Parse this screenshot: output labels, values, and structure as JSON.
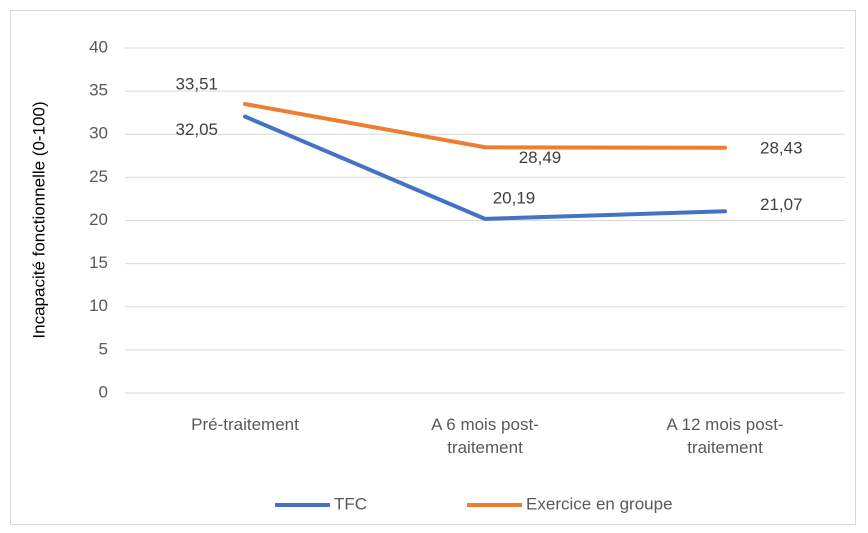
{
  "chart_data": {
    "type": "line",
    "y_label": "Incapacité fonctionnelle (0-100)",
    "categories": [
      "Pré-traitement",
      "A 6 mois post-traitement",
      "A 12 mois post-traitement"
    ],
    "series": [
      {
        "name": "TFC",
        "color": "#4472c4",
        "values": [
          32.05,
          20.19,
          21.07
        ],
        "value_labels": [
          "32,05",
          "20,19",
          "21,07"
        ]
      },
      {
        "name": "Exercice en groupe",
        "color": "#ed7d31",
        "values": [
          33.51,
          28.49,
          28.43
        ],
        "value_labels": [
          "33,51",
          "28,49",
          "28,43"
        ]
      }
    ],
    "ylim": [
      0,
      40
    ],
    "yticks": [
      0,
      5,
      10,
      15,
      20,
      25,
      30,
      35,
      40
    ],
    "grid": true,
    "legend": "bottom"
  }
}
